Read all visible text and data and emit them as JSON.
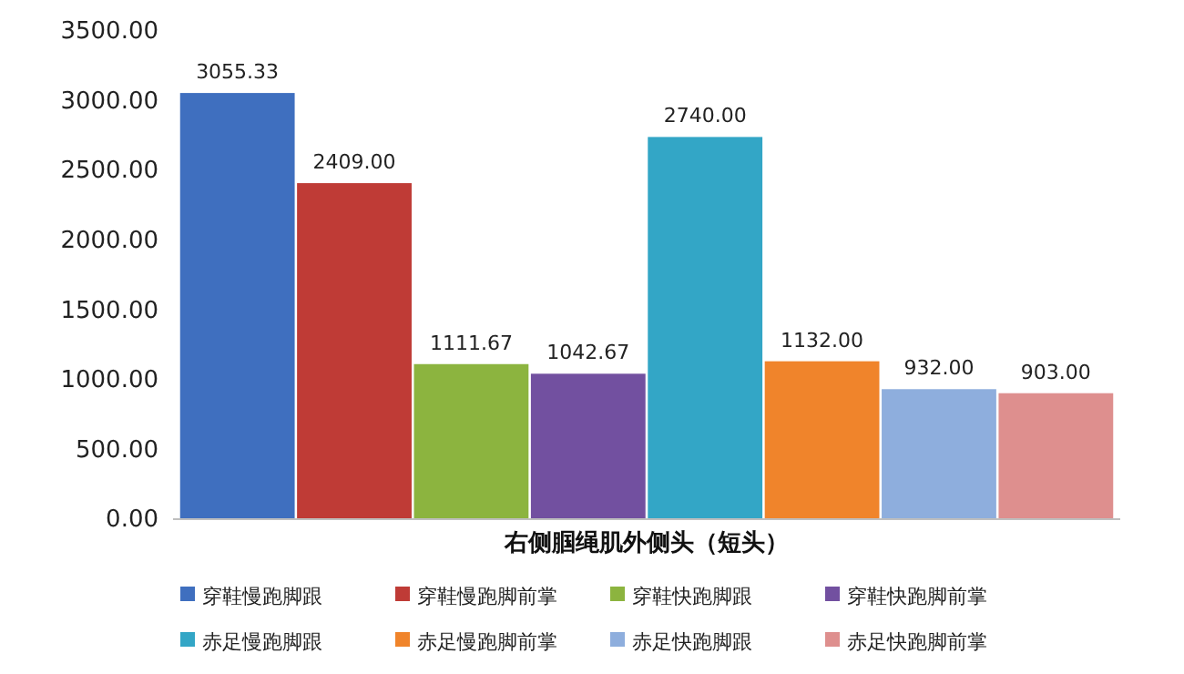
{
  "chart_data": {
    "type": "bar",
    "categories": [
      "右侧腘绳肌外侧头（短头）"
    ],
    "series": [
      {
        "name": "穿鞋慢跑脚跟",
        "color": "#3f6fbf",
        "values": [
          3055.33
        ],
        "value_labels": [
          "3055.33"
        ]
      },
      {
        "name": "穿鞋慢跑脚前掌",
        "color": "#bf3b36",
        "values": [
          2409
        ],
        "value_labels": [
          "2409.00"
        ]
      },
      {
        "name": "穿鞋快跑脚跟",
        "color": "#8cb43f",
        "values": [
          1111.67
        ],
        "value_labels": [
          "1111.67"
        ]
      },
      {
        "name": "穿鞋快跑脚前掌",
        "color": "#7250a0",
        "values": [
          1042.67
        ],
        "value_labels": [
          "1042.67"
        ]
      },
      {
        "name": "赤足慢跑脚跟",
        "color": "#33a6c6",
        "values": [
          2740
        ],
        "value_labels": [
          "2740.00"
        ]
      },
      {
        "name": "赤足慢跑脚前掌",
        "color": "#f0842b",
        "values": [
          1132
        ],
        "value_labels": [
          "1132.00"
        ]
      },
      {
        "name": "赤足快跑脚跟",
        "color": "#8eaedd",
        "values": [
          932
        ],
        "value_labels": [
          "932.00"
        ]
      },
      {
        "name": "赤足快跑脚前掌",
        "color": "#de8f8e",
        "values": [
          903
        ],
        "value_labels": [
          "903.00"
        ]
      }
    ],
    "ylim": [
      0,
      3500
    ],
    "yticks": [
      {
        "value": 0,
        "label": "0.00"
      },
      {
        "value": 500,
        "label": "500.00"
      },
      {
        "value": 1000,
        "label": "1000.00"
      },
      {
        "value": 1500,
        "label": "1500.00"
      },
      {
        "value": 2000,
        "label": "2000.00"
      },
      {
        "value": 2500,
        "label": "2500.00"
      },
      {
        "value": 3000,
        "label": "3000.00"
      },
      {
        "value": 3500,
        "label": "3500.00"
      }
    ],
    "grid": false,
    "legend": "bottom"
  }
}
